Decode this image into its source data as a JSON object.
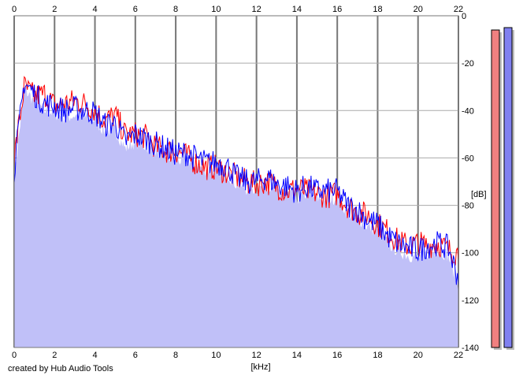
{
  "chart_data": {
    "type": "line",
    "title": "",
    "xlabel": "[kHz]",
    "ylabel": "[dB]",
    "xlim": [
      0,
      22
    ],
    "ylim": [
      -140,
      0
    ],
    "x_ticks": [
      0,
      2,
      4,
      6,
      8,
      10,
      12,
      14,
      16,
      18,
      20,
      22
    ],
    "y_ticks": [
      0,
      -20,
      -40,
      -60,
      -80,
      -100,
      -120,
      -140
    ],
    "y_tick_labels": [
      "0",
      "-20",
      "-40",
      "-60",
      "-80",
      "-100",
      "-120",
      "-140"
    ],
    "grid": true,
    "legend": "none",
    "x": [
      0,
      0.5,
      1,
      1.5,
      2,
      2.5,
      3,
      3.5,
      4,
      4.5,
      5,
      5.5,
      6,
      6.5,
      7,
      7.5,
      8,
      8.5,
      9,
      9.5,
      10,
      10.5,
      11,
      11.5,
      12,
      12.5,
      13,
      13.5,
      14,
      14.5,
      15,
      15.5,
      16,
      16.5,
      17,
      17.5,
      18,
      18.5,
      19,
      19.5,
      20,
      20.5,
      21,
      21.5,
      22
    ],
    "series": [
      {
        "color": "#ff0000",
        "values": [
          -60,
          -30,
          -34,
          -33,
          -38,
          -37,
          -36,
          -37,
          -40,
          -44,
          -42,
          -50,
          -50,
          -51,
          -55,
          -57,
          -57,
          -59,
          -62,
          -64,
          -64,
          -66,
          -68,
          -70,
          -71,
          -70,
          -72,
          -74,
          -73,
          -74,
          -75,
          -76,
          -75,
          -80,
          -83,
          -84,
          -88,
          -91,
          -95,
          -97,
          -96,
          -97,
          -96,
          -99,
          -100
        ]
      },
      {
        "color": "#0000ff",
        "values": [
          -65,
          -28,
          -33,
          -37,
          -38,
          -40,
          -39,
          -40,
          -41,
          -46,
          -45,
          -53,
          -50,
          -52,
          -54,
          -56,
          -58,
          -58,
          -60,
          -62,
          -62,
          -63,
          -68,
          -70,
          -70,
          -68,
          -71,
          -72,
          -74,
          -72,
          -74,
          -74,
          -74,
          -80,
          -82,
          -86,
          -88,
          -93,
          -96,
          -98,
          -99,
          -97,
          -96,
          -98,
          -111
        ]
      }
    ],
    "fill_color": "#c0c0f8"
  },
  "level_meters": [
    {
      "color": "#f08080",
      "level_db": -6
    },
    {
      "color": "#8080f0",
      "level_db": -5
    }
  ],
  "footer": {
    "credit": "created by Hub Audio Tools"
  }
}
